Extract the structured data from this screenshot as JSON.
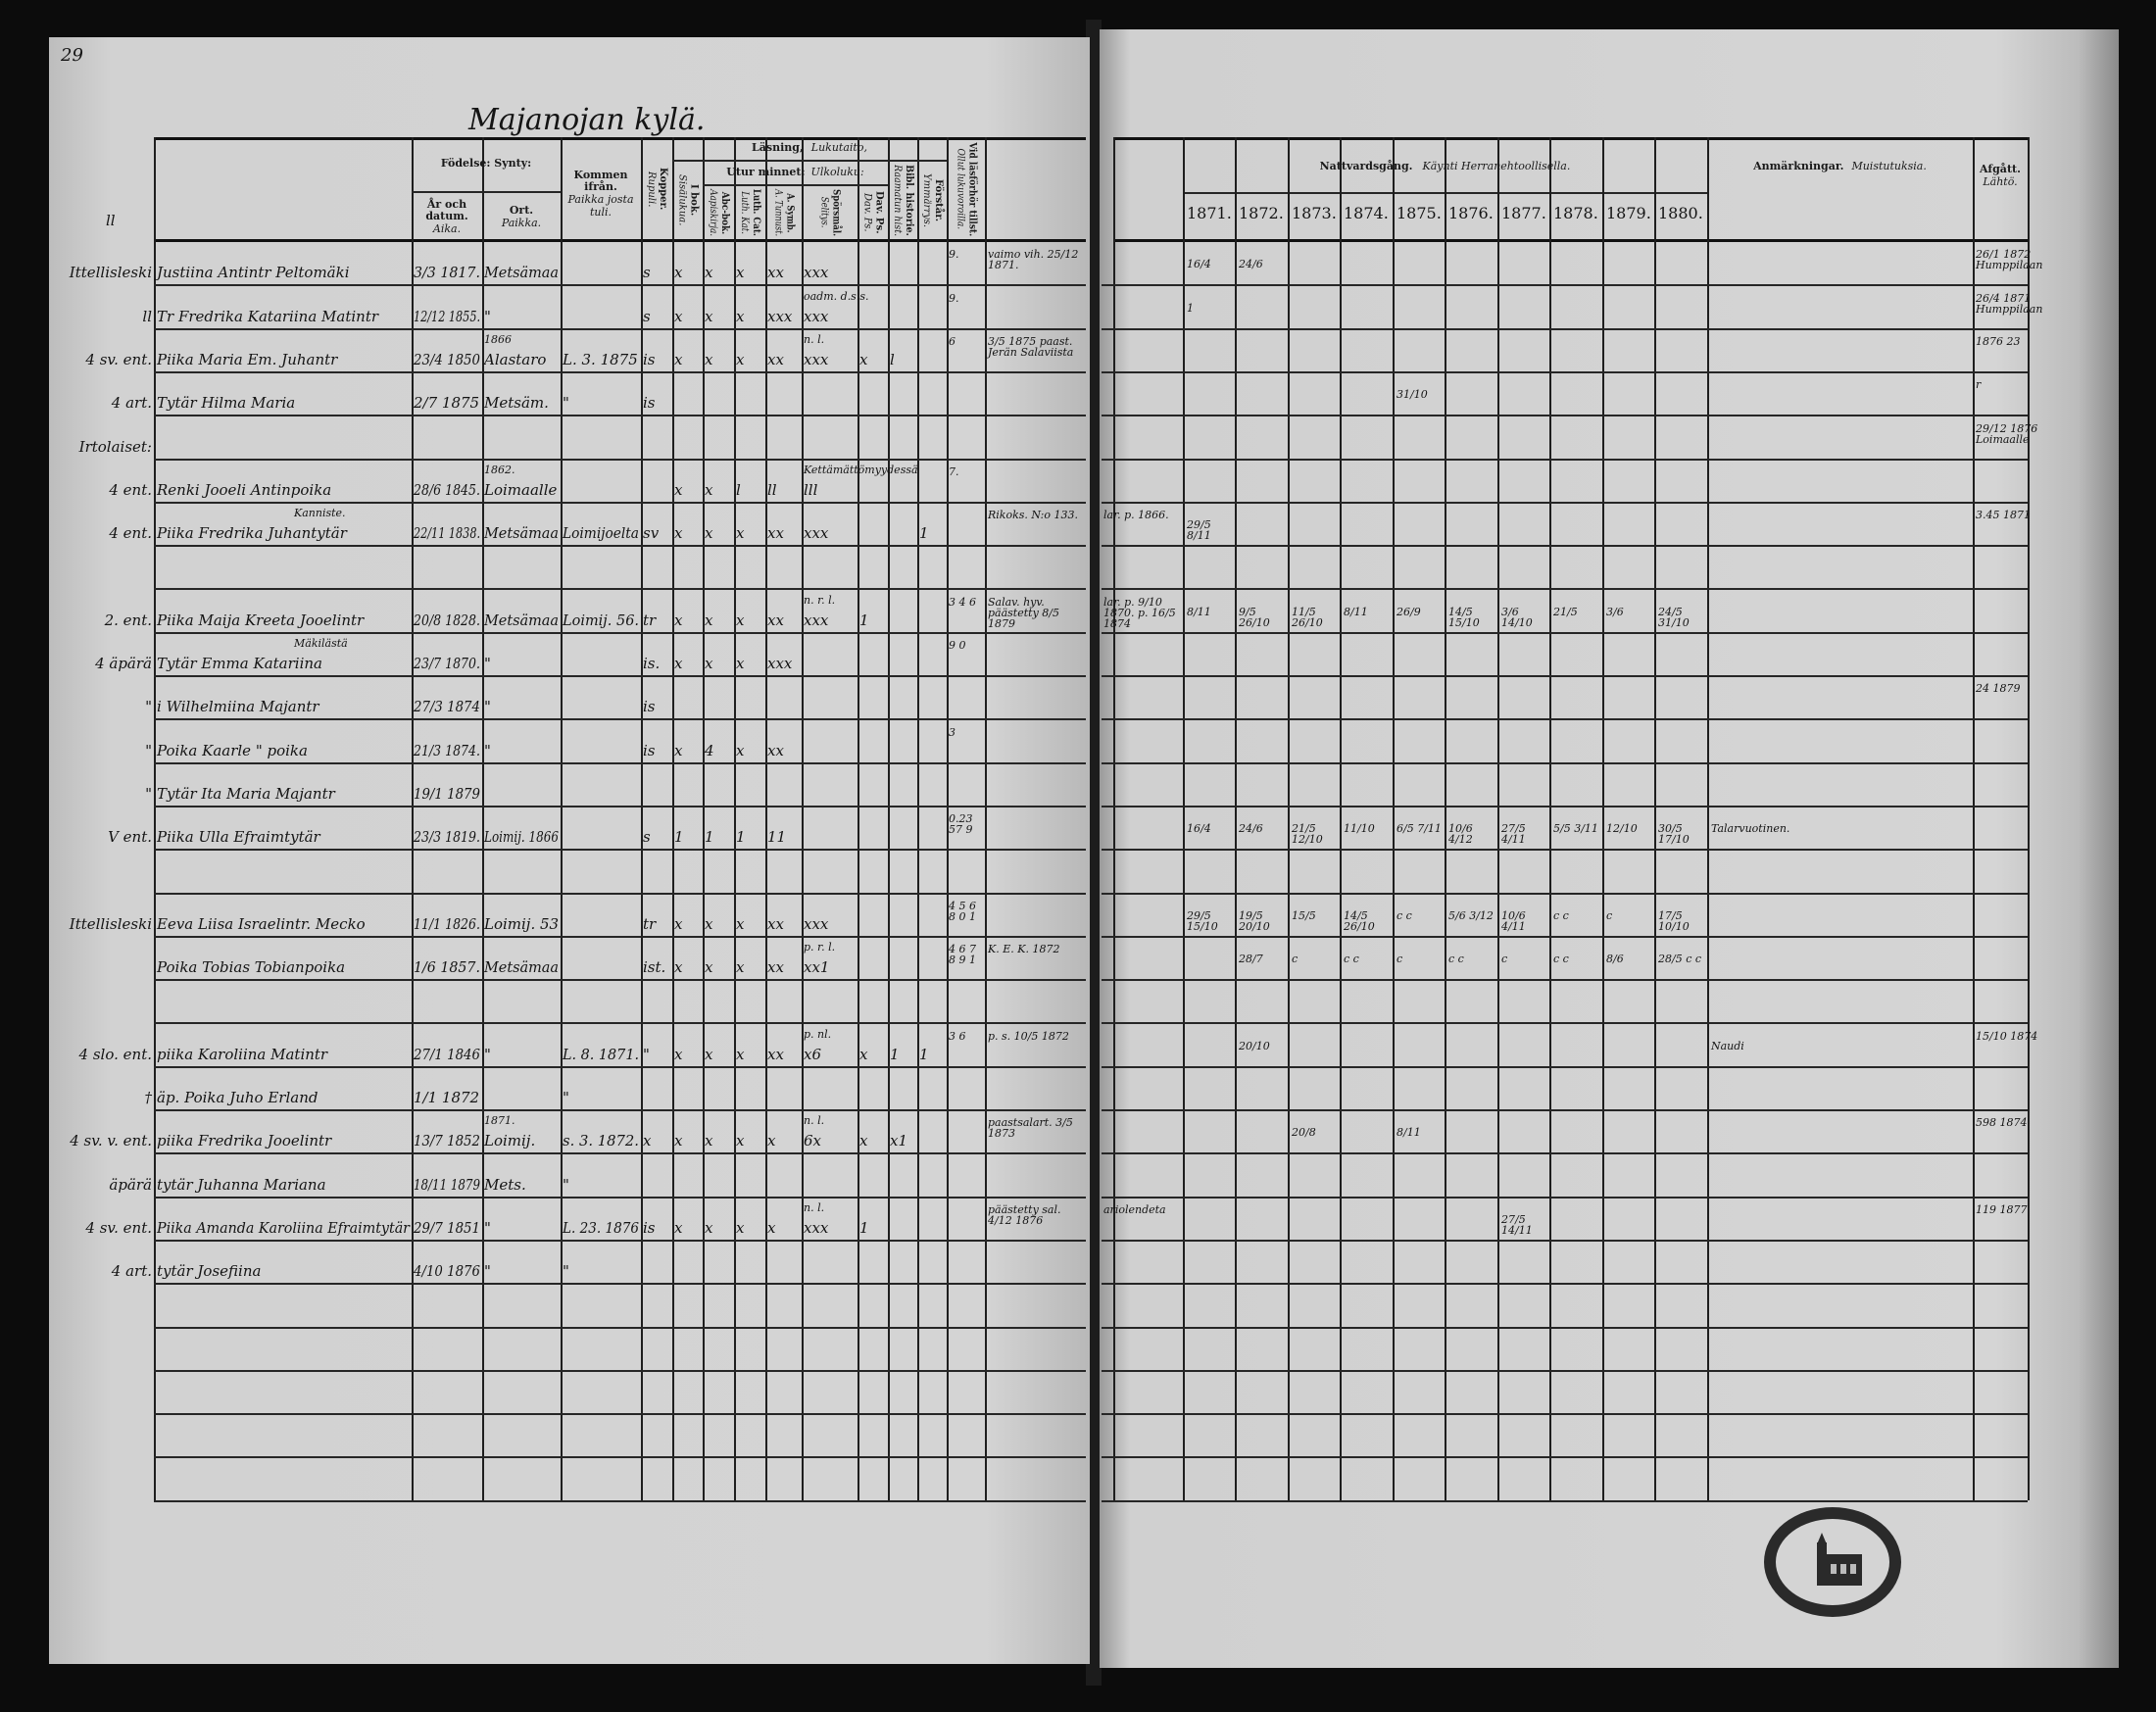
{
  "left_page": {
    "page_number": "29",
    "title": "Majanojan kylä.",
    "top_margin_mark": "ll",
    "headers": {
      "birth": "Födelse: Synty:",
      "birth_date": "År och datum.",
      "birth_date_fi": "Aika.",
      "birth_place": "Ort.",
      "birth_place_fi": "Paikka.",
      "came_from": "Kommen ifrån.",
      "came_from_fi": "Paikka josta tuli.",
      "kopper": "Kopper.",
      "kopper_fi": "Rupuli.",
      "reading": "Läsning,",
      "reading_fi": "Lukutaito,",
      "i_bok": "I bok.",
      "i_bok_fi": "Sisälukua.",
      "by_heart": "Utur minnet:",
      "by_heart_fi": "Ulkoluku:",
      "abc": "Abc-bok.",
      "abc_fi": "Aapiskirja.",
      "luth": "Luth. Cat.",
      "luth_fi": "Luth. Kat.",
      "a_symb": "A. Symb.",
      "a_symb_fi": "A. Tunnust.",
      "sporsmal": "Spörsmål.",
      "sporsmal_fi": "Selitys.",
      "dav_ps": "Dav. Ps.",
      "dav_ps_fi": "Dav. Ps.",
      "bibl": "Bibl. historie.",
      "bibl_fi": "Raamatun hist.",
      "forstar": "Förstår.",
      "forstar_fi": "Ymmärrys.",
      "lasforhor": "Vid läsförhör tillst.",
      "lasforhor_fi": "Ollut lukuvoroilla."
    },
    "rows": [
      {
        "margin": "Ittellisleski",
        "name": "Justiina Antintr Peltomäki",
        "birth_date": "3/3 1817.",
        "birth_place": "Metsämaa",
        "kopper": "s",
        "i_bok": "x",
        "abc": "x",
        "luth": "x",
        "a_symb": "xx",
        "sporsmal": "xxx",
        "lasforhor": "9.",
        "notes": "vaimo vih. 25/12 1871."
      },
      {
        "margin": "ll",
        "name": "Tr Fredrika Katariina Matintr",
        "birth_date": "12/12 1855.",
        "birth_place": "\"",
        "kopper": "s",
        "i_bok": "x",
        "abc": "x",
        "luth": "x",
        "a_symb": "xxx",
        "sporsmal": "xxx",
        "sporsmal_note": "oadm. d.s.s.",
        "lasforhor": "9."
      },
      {
        "margin": "4 sv. ent.",
        "name": "Piika Maria Em. Juhantr",
        "birth_date": "23/4 1850",
        "birth_place": "Alastaro",
        "birth_place_note": "1866",
        "came_from": "L. 3. 1875",
        "kopper": "is",
        "i_bok": "x",
        "abc": "x",
        "luth": "x",
        "a_symb": "xx",
        "sporsmal": "xxx",
        "sporsmal_note": "n. l.",
        "dav_ps": "x",
        "bibl": "l",
        "lasforhor": "6",
        "notes": "3/5 1875 paast. Jerän Salaviista"
      },
      {
        "margin": "4 art.",
        "name": "Tytär Hilma Maria",
        "birth_date": "2/7 1875",
        "birth_place": "Metsäm.",
        "came_from": "\"",
        "kopper": "is"
      },
      {
        "margin": "Irtolaiset:"
      },
      {
        "margin": "4 ent.",
        "name": "Renki Jooeli Antinpoika",
        "birth_date": "28/6 1845.",
        "birth_place": "Loimaalle",
        "birth_place_note": "1862.",
        "i_bok": "x",
        "abc": "x",
        "luth": "l",
        "a_symb": "ll",
        "sporsmal": "lll",
        "sporsmal_note": "Kettämättömyydessä",
        "lasforhor": "7."
      },
      {
        "margin": "4 ent.",
        "name": "Piika Fredrika Juhantytär",
        "name_note": "Kanniste.",
        "birth_date": "22/11 1838.",
        "birth_place": "Metsämaa",
        "came_from": "Loimijoelta",
        "kopper": "sv",
        "i_bok": "x",
        "abc": "x",
        "luth": "x",
        "a_symb": "xx",
        "sporsmal": "xxx",
        "forstar": "1",
        "notes": "Rikoks. N:o 133."
      },
      {},
      {
        "margin": "2. ent.",
        "name": "Piika Maija Kreeta Jooelintr",
        "birth_date": "20/8 1828.",
        "birth_place": "Metsämaa",
        "came_from": "Loimij. 56.",
        "kopper": "tr",
        "i_bok": "x",
        "abc": "x",
        "luth": "x",
        "a_symb": "xx",
        "sporsmal": "xxx",
        "sporsmal_note": "n. r. l.",
        "dav_ps": "1",
        "lasforhor": "3 4 6",
        "notes": "Salav. hyv. päästetty 8/5 1879"
      },
      {
        "margin": "4 äpärä",
        "name": "Tytär Emma Katariina",
        "name_note": "Mäkilästä",
        "birth_date": "23/7 1870.",
        "birth_place": "\"",
        "kopper": "is.",
        "i_bok": "x",
        "abc": "x",
        "luth": "x",
        "a_symb": "xxx",
        "lasforhor": "9 0"
      },
      {
        "margin": "\"",
        "name": "i Wilhelmiina Majantr",
        "birth_date": "27/3 1874",
        "birth_place": "\"",
        "kopper": "is"
      },
      {
        "margin": "\"",
        "name": "Poika Kaarle \" poika",
        "birth_date": "21/3 1874.",
        "birth_place": "\"",
        "kopper": "is",
        "i_bok": "x",
        "abc": "4",
        "luth": "x",
        "a_symb": "xx",
        "lasforhor": "3"
      },
      {
        "margin": "\"",
        "name": "Tytär Ita Maria Majantr",
        "birth_date": "19/1 1879"
      },
      {
        "margin": "V ent.",
        "name": "Piika Ulla Efraimtytär",
        "birth_date": "23/3 1819.",
        "birth_place": "Loimij. 1866",
        "kopper": "s",
        "i_bok": "1",
        "abc": "1",
        "luth": "1",
        "a_symb": "11",
        "lasforhor": "0.23 57 9"
      },
      {},
      {
        "margin": "Ittellisleski",
        "name": "Eeva Liisa Israelintr. Mecko",
        "birth_date": "11/1 1826.",
        "birth_place": "Loimij. 53",
        "kopper": "tr",
        "i_bok": "x",
        "abc": "x",
        "luth": "x",
        "a_symb": "xx",
        "sporsmal": "xxx",
        "lasforhor": "4 5 6 8 0 1"
      },
      {
        "name": "Poika Tobias Tobianpoika",
        "birth_date": "1/6 1857.",
        "birth_place": "Metsämaa",
        "kopper": "ist.",
        "i_bok": "x",
        "abc": "x",
        "luth": "x",
        "a_symb": "xx",
        "sporsmal": "xx1",
        "sporsmal_note": "p. r. l.",
        "lasforhor": "4 6 7 8 9 1",
        "notes": "K. E. K. 1872"
      },
      {},
      {
        "margin": "4 slo. ent.",
        "name": "piika Karoliina Matintr",
        "birth_date": "27/1 1846",
        "birth_place": "\"",
        "came_from": "L. 8. 1871.",
        "kopper": "\"",
        "i_bok": "x",
        "abc": "x",
        "luth": "x",
        "a_symb": "xx",
        "sporsmal": "x6",
        "sporsmal_note": "p. nl.",
        "dav_ps": "x",
        "bibl": "1",
        "forstar": "1",
        "lasforhor": "3 6",
        "notes": "p. s. 10/5 1872"
      },
      {
        "margin": "†",
        "name": "äp. Poika Juho Erland",
        "birth_date": "1/1 1872",
        "came_from": "\""
      },
      {
        "margin": "4 sv. v. ent.",
        "name": "piika Fredrika Jooelintr",
        "birth_date": "13/7 1852",
        "birth_place": "Loimij.",
        "birth_place_note": "1871.",
        "came_from": "s. 3. 1872.",
        "kopper": "x",
        "i_bok": "x",
        "abc": "x",
        "luth": "x",
        "a_symb": "x",
        "sporsmal": "6x",
        "sporsmal_note": "n. l.",
        "dav_ps": "x",
        "bibl": "x1",
        "notes": "paastsalart. 3/5 1873"
      },
      {
        "margin": "äpärä",
        "name": "tytär Juhanna Mariana",
        "birth_date": "18/11 1879",
        "birth_place": "Mets.",
        "came_from": "\""
      },
      {
        "margin": "4 sv. ent.",
        "name": "Piika Amanda Karoliina Efraimtytär",
        "birth_date": "29/7 1851",
        "birth_place": "\"",
        "came_from": "L. 23. 1876",
        "kopper": "is",
        "i_bok": "x",
        "abc": "x",
        "luth": "x",
        "a_symb": "x",
        "sporsmal": "xxx",
        "sporsmal_note": "n. l.",
        "dav_ps": "1",
        "notes": "päästetty sal. 4/12 1876"
      },
      {
        "margin": "4 art.",
        "name": "tytär Josefiina",
        "birth_date": "4/10 1876",
        "birth_place": "\"",
        "came_from": "\""
      },
      {},
      {},
      {},
      {},
      {}
    ]
  },
  "right_page": {
    "headers": {
      "communion": "Nattvardsgång.",
      "communion_fi": "Käynti Herranehtoollisella.",
      "years": [
        "1871.",
        "1872.",
        "1873.",
        "1874.",
        "1875.",
        "1876.",
        "1877.",
        "1878.",
        "1879.",
        "1880."
      ],
      "remarks": "Anmärkningar.",
      "remarks_fi": "Muistutuksia.",
      "left": "Afgått.",
      "left_fi": "Lähtö."
    },
    "rows": [
      {
        "communion": [
          "16/4",
          "24/6",
          "",
          "",
          "",
          "",
          "",
          "",
          "",
          ""
        ],
        "left": "26/1 1872 Humppilaan"
      },
      {
        "communion": [
          "1",
          "",
          "",
          "",
          "",
          "",
          "",
          "",
          "",
          ""
        ],
        "left": "26/4 1871 Humppilaan"
      },
      {
        "communion": [
          "",
          "",
          "",
          "",
          "",
          "",
          "",
          "",
          "",
          ""
        ],
        "left": "1876 23"
      },
      {
        "communion": [
          "",
          "",
          "",
          "",
          "31/10",
          "",
          "",
          "",
          "",
          ""
        ],
        "left": "r"
      },
      {
        "communion": [
          "",
          "",
          "",
          "",
          "",
          "",
          "",
          "",
          "",
          ""
        ],
        "left": "29/12 1876 Loimaalle"
      },
      {
        "communion": [
          "",
          "",
          "",
          "",
          "",
          "",
          "",
          "",
          "",
          ""
        ]
      },
      {
        "spine_note": "lar. p. 1866.",
        "communion": [
          "29/5 8/11",
          "",
          "",
          "",
          "",
          "",
          "",
          "",
          "",
          ""
        ],
        "left": "3.45 1871"
      },
      {
        "communion": [
          "",
          "",
          "",
          "",
          "",
          "",
          "",
          "",
          "",
          ""
        ]
      },
      {
        "spine_note": "lar. p. 9/10 1870. p. 16/5 1874",
        "communion": [
          "8/11",
          "9/5 26/10",
          "11/5 26/10",
          "8/11",
          "26/9",
          "14/5 15/10",
          "3/6 14/10",
          "21/5",
          "3/6",
          "24/5 31/10"
        ]
      },
      {
        "communion": [
          "",
          "",
          "",
          "",
          "",
          "",
          "",
          "",
          "",
          ""
        ]
      },
      {
        "communion": [
          "",
          "",
          "",
          "",
          "",
          "",
          "",
          "",
          "",
          ""
        ],
        "left": "24 1879"
      },
      {
        "communion": [
          "",
          "",
          "",
          "",
          "",
          "",
          "",
          "",
          "",
          ""
        ]
      },
      {
        "communion": [
          "",
          "",
          "",
          "",
          "",
          "",
          "",
          "",
          "",
          ""
        ]
      },
      {
        "communion": [
          "16/4",
          "24/6",
          "21/5 12/10",
          "11/10",
          "6/5 7/11",
          "10/6 4/12",
          "27/5 4/11",
          "5/5 3/11",
          "12/10",
          "30/5 17/10"
        ],
        "remarks": "Talarvuotinen."
      },
      {
        "communion": [
          "",
          "",
          "",
          "",
          "",
          "",
          "",
          "",
          "",
          ""
        ]
      },
      {
        "communion": [
          "29/5 15/10",
          "19/5 20/10",
          "15/5",
          "14/5 26/10",
          "c c",
          "5/6 3/12",
          "10/6 4/11",
          "c c",
          "c",
          "17/5 10/10"
        ]
      },
      {
        "communion": [
          "",
          "28/7",
          "c",
          "c c",
          "c",
          "c c",
          "c",
          "c c",
          "8/6",
          "28/5 c c"
        ]
      },
      {
        "communion": [
          "",
          "",
          "",
          "",
          "",
          "",
          "",
          "",
          "",
          ""
        ]
      },
      {
        "communion": [
          "",
          "20/10",
          "",
          "",
          "",
          "",
          "",
          "",
          "",
          ""
        ],
        "remarks": "Naudi",
        "left": "15/10 1874"
      },
      {
        "communion": [
          "",
          "",
          "",
          "",
          "",
          "",
          "",
          "",
          "",
          ""
        ]
      },
      {
        "communion": [
          "",
          "",
          "20/8",
          "",
          "8/11",
          "",
          "",
          "",
          "",
          ""
        ],
        "left": "598 1874"
      },
      {
        "communion": [
          "",
          "",
          "",
          "",
          "",
          "",
          "",
          "",
          "",
          ""
        ]
      },
      {
        "spine_note": "ariolendeta",
        "communion": [
          "",
          "",
          "",
          "",
          "",
          "",
          "27/5 14/11",
          "",
          "",
          ""
        ],
        "left": "119 1877"
      },
      {
        "communion": [
          "",
          "",
          "",
          "",
          "",
          "",
          "",
          "",
          "",
          ""
        ]
      },
      {},
      {},
      {},
      {},
      {}
    ]
  },
  "stamp": {
    "kind": "church-seal"
  }
}
